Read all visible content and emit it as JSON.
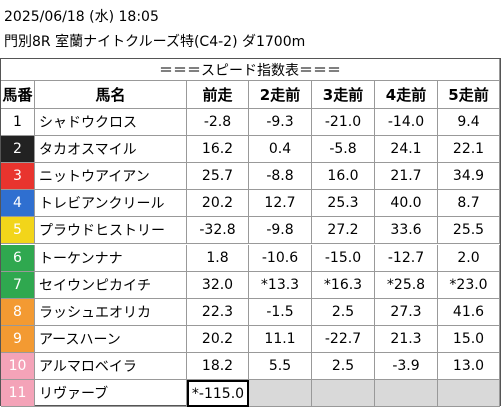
{
  "header": {
    "date": "2025/06/18 (水) 18:05",
    "race": "門別8R 室蘭ナイトクルーズ特(C4-2) ダ1700m"
  },
  "table": {
    "title": "＝＝＝スピード指数表＝＝＝",
    "columns": [
      "馬番",
      "馬名",
      "前走",
      "2走前",
      "3走前",
      "4走前",
      "5走前"
    ],
    "rows": [
      {
        "number": "1",
        "name": "シャドウクロス",
        "color": "#ffffff",
        "text_color": "#000000",
        "values": [
          "-2.8",
          "-9.3",
          "-21.0",
          "-14.0",
          "9.4"
        ]
      },
      {
        "number": "2",
        "name": "タカオスマイル",
        "color": "#222222",
        "text_color": "#ffffff",
        "values": [
          "16.2",
          "0.4",
          "-5.8",
          "24.1",
          "22.1"
        ]
      },
      {
        "number": "3",
        "name": "ニットウアイアン",
        "color": "#e8342e",
        "text_color": "#ffffff",
        "values": [
          "25.7",
          "-8.8",
          "16.0",
          "21.7",
          "34.9"
        ]
      },
      {
        "number": "4",
        "name": "トレビアンクリール",
        "color": "#2f6fd0",
        "text_color": "#ffffff",
        "values": [
          "20.2",
          "12.7",
          "25.3",
          "40.0",
          "8.7"
        ]
      },
      {
        "number": "5",
        "name": "プラウドヒストリー",
        "color": "#f2d51a",
        "text_color": "#ffffff",
        "values": [
          "-32.8",
          "-9.8",
          "27.2",
          "33.6",
          "25.5"
        ]
      },
      {
        "number": "6",
        "name": "トーケンナナ",
        "color": "#2fa84f",
        "text_color": "#ffffff",
        "values": [
          "1.8",
          "-10.6",
          "-15.0",
          "-12.7",
          "2.0"
        ]
      },
      {
        "number": "7",
        "name": "セイウンピカイチ",
        "color": "#2fa84f",
        "text_color": "#ffffff",
        "values": [
          "32.0",
          "*13.3",
          "*16.3",
          "*25.8",
          "*23.0"
        ]
      },
      {
        "number": "8",
        "name": "ラッシュエオリカ",
        "color": "#f39a32",
        "text_color": "#ffffff",
        "values": [
          "22.3",
          "-1.5",
          "2.5",
          "27.3",
          "41.6"
        ]
      },
      {
        "number": "9",
        "name": "アースハーン",
        "color": "#f39a32",
        "text_color": "#ffffff",
        "values": [
          "20.2",
          "11.1",
          "-22.7",
          "21.3",
          "15.0"
        ]
      },
      {
        "number": "10",
        "name": "アルマロベイラ",
        "color": "#f4a3b8",
        "text_color": "#ffffff",
        "values": [
          "18.2",
          "5.5",
          "2.5",
          "-3.9",
          "13.0"
        ]
      },
      {
        "number": "11",
        "name": "リヴァーブ",
        "color": "#f4a3b8",
        "text_color": "#ffffff",
        "values": [
          "*-115.0"
        ]
      }
    ]
  }
}
